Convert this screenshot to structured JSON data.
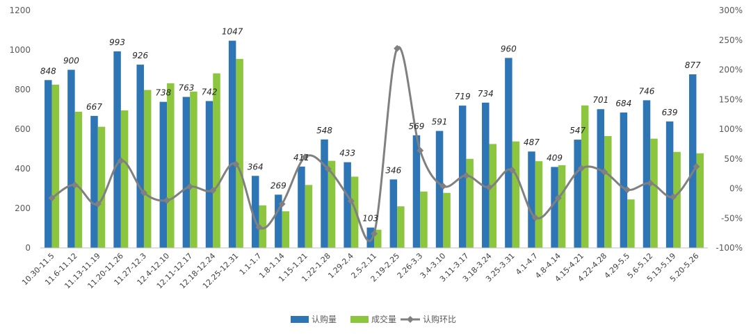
{
  "chart_data": {
    "type": "bar",
    "categories": [
      "10.30-11.5",
      "11.6-11.12",
      "11.13-11.19",
      "11.20-11.26",
      "11.27-12.3",
      "12.4-12.10",
      "12.11-12.17",
      "12.18-12.24",
      "12.25-12.31",
      "1.1-1.7",
      "1.8-1.14",
      "1.15-1.21",
      "1.22-1.28",
      "1.29-2.4",
      "2.5-2.11",
      "2.19-2.25",
      "2.26-3.3",
      "3.4-3.10",
      "3.11-3.17",
      "3.18-3.24",
      "3.25-3.31",
      "4.1-4.7",
      "4.8-4.14",
      "4.15-4.21",
      "4.22-4.28",
      "4.29-5.5",
      "5.6-5.12",
      "5.13-5.19",
      "5.20-5.26"
    ],
    "series": [
      {
        "name": "认购量",
        "type": "bar",
        "color": "#2E75B6",
        "values": [
          848,
          900,
          667,
          993,
          926,
          738,
          763,
          742,
          1047,
          364,
          269,
          411,
          548,
          433,
          103,
          346,
          569,
          591,
          719,
          734,
          960,
          487,
          409,
          547,
          701,
          684,
          746,
          639,
          877
        ]
      },
      {
        "name": "成交量",
        "type": "bar",
        "color": "#8CC63F",
        "values": [
          825,
          688,
          612,
          695,
          798,
          832,
          790,
          882,
          955,
          215,
          185,
          318,
          440,
          360,
          92,
          210,
          285,
          278,
          450,
          525,
          538,
          438,
          418,
          720,
          565,
          245,
          552,
          485,
          478
        ]
      },
      {
        "name": "认购环比",
        "type": "line",
        "axis": "right",
        "color": "#808080",
        "values": [
          -16,
          6,
          -26,
          47,
          -7,
          -20,
          3,
          -3,
          41,
          -65,
          -26,
          53,
          33,
          -21,
          -76,
          236,
          64,
          4,
          22,
          2,
          31,
          -49,
          -16,
          34,
          28,
          -2,
          9,
          -14,
          37
        ]
      }
    ],
    "y_left": {
      "min": 0,
      "max": 1200,
      "step": 200,
      "ticks": [
        "0",
        "200",
        "400",
        "600",
        "800",
        "1000",
        "1200"
      ]
    },
    "y_right": {
      "min": -100,
      "max": 300,
      "step": 50,
      "ticks": [
        "-100%",
        "-50%",
        "0%",
        "50%",
        "100%",
        "150%",
        "200%",
        "250%",
        "300%"
      ]
    },
    "data_labels": "bar series 认购量",
    "grid": false,
    "legend_position": "bottom"
  }
}
